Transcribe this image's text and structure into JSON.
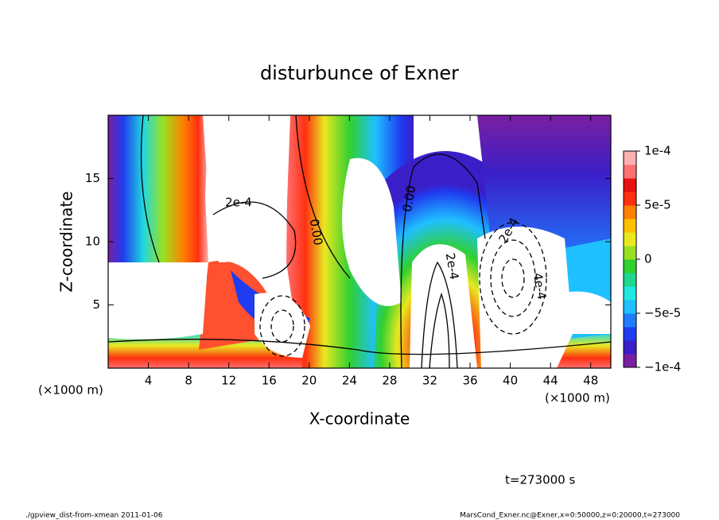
{
  "chart_data": {
    "type": "contour",
    "title": "disturbunce of Exner",
    "x_label": "X-coordinate",
    "y_label": "Z-coordinate",
    "x_unit": "(×1000 m)",
    "x_unit_right": "(×1000 m)",
    "xlim": [
      0,
      50
    ],
    "xticks": [
      4,
      8,
      12,
      16,
      20,
      24,
      28,
      32,
      36,
      40,
      44,
      48
    ],
    "ylim": [
      0,
      20
    ],
    "yticks": [
      5,
      10,
      15
    ],
    "colorbar": {
      "lim": [
        -0.0001,
        0.0001
      ],
      "ticks": [
        {
          "value": -0.0001,
          "label": "−1e-4"
        },
        {
          "value": -5e-05,
          "label": "−5e-5"
        },
        {
          "value": 0,
          "label": "0"
        },
        {
          "value": 5e-05,
          "label": "5e-5"
        },
        {
          "value": 0.0001,
          "label": "1e-4"
        }
      ],
      "colors": [
        "#7a1fa2",
        "#3a1fc8",
        "#1f3cf0",
        "#1f7cff",
        "#1fc0ff",
        "#1fe8e0",
        "#1fd890",
        "#30d030",
        "#9ae020",
        "#e8e820",
        "#ffc000",
        "#ff8000",
        "#ff3010",
        "#e81010",
        "#ff7070",
        "#ffb0b0"
      ]
    },
    "contour_labels": [
      "2e-4",
      "0.00",
      "0.00",
      "2e-4",
      "2e-4",
      "4e-4"
    ],
    "time_label": "t=273000 s",
    "footer_left": "./gpview_dist-from-xmean  2011-01-06",
    "footer_right": "MarsCond_Exner.nc@Exner,x=0:50000,z=0:20000,t=273000"
  }
}
